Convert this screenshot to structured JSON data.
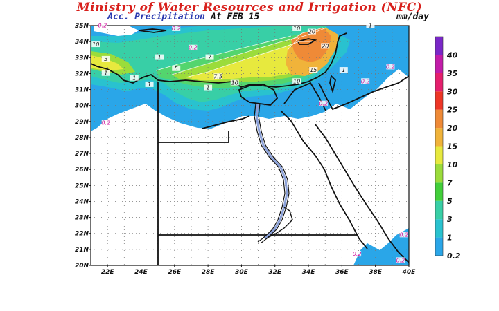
{
  "header": {
    "title": "Ministry of Water Resources and Irrigation (NFC)",
    "subtitle_label": "Acc. Precipitation",
    "subtitle_date": "At FEB 15",
    "units": "mm/day"
  },
  "map": {
    "lat_labels": [
      "35N",
      "34N",
      "33N",
      "32N",
      "31N",
      "30N",
      "29N",
      "28N",
      "27N",
      "26N",
      "25N",
      "24N",
      "23N",
      "22N",
      "21N",
      "20N"
    ],
    "lon_labels": [
      "22E",
      "24E",
      "26E",
      "28E",
      "30E",
      "32E",
      "34E",
      "36E",
      "38E",
      "40E"
    ],
    "contour_labels": [
      {
        "text": "0.2",
        "lat": 34.9,
        "lon": 21.7
      },
      {
        "text": "0.2",
        "lat": 34.7,
        "lon": 26.1
      },
      {
        "text": "10",
        "lat": 33.7,
        "lon": 21.3
      },
      {
        "text": "3",
        "lat": 32.8,
        "lon": 21.9
      },
      {
        "text": "1",
        "lat": 31.9,
        "lon": 21.9
      },
      {
        "text": "0.2",
        "lat": 33.5,
        "lon": 27.1
      },
      {
        "text": "1",
        "lat": 32.9,
        "lon": 25.1
      },
      {
        "text": "7",
        "lat": 32.9,
        "lon": 28.1
      },
      {
        "text": "5",
        "lat": 32.2,
        "lon": 26.1
      },
      {
        "text": "7.5",
        "lat": 31.7,
        "lon": 28.6
      },
      {
        "text": "10",
        "lat": 31.3,
        "lon": 29.6
      },
      {
        "text": "1",
        "lat": 31.6,
        "lon": 23.6
      },
      {
        "text": "1",
        "lat": 31.0,
        "lon": 28.0
      },
      {
        "text": "1",
        "lat": 31.2,
        "lon": 24.5
      },
      {
        "text": "0.2",
        "lat": 28.8,
        "lon": 21.9
      },
      {
        "text": "10",
        "lat": 34.7,
        "lon": 33.3
      },
      {
        "text": "20",
        "lat": 34.5,
        "lon": 34.2
      },
      {
        "text": "20",
        "lat": 33.6,
        "lon": 35.0
      },
      {
        "text": "15",
        "lat": 32.1,
        "lon": 34.3
      },
      {
        "text": "10",
        "lat": 31.4,
        "lon": 33.3
      },
      {
        "text": "1",
        "lat": 32.1,
        "lon": 36.1
      },
      {
        "text": "0.2",
        "lat": 31.4,
        "lon": 37.4
      },
      {
        "text": "0.2",
        "lat": 30.0,
        "lon": 34.9
      },
      {
        "text": "1",
        "lat": 34.9,
        "lon": 37.7
      },
      {
        "text": "0.2",
        "lat": 32.3,
        "lon": 38.9
      },
      {
        "text": "0.2",
        "lat": 21.8,
        "lon": 39.7
      },
      {
        "text": "0.2",
        "lat": 20.6,
        "lon": 36.9
      },
      {
        "text": "0.2",
        "lat": 20.2,
        "lon": 39.5
      }
    ],
    "colors": {
      "p02": "#2aa6e8",
      "p1": "#29c2cf",
      "p3": "#38cfa6",
      "p5": "#53d56e",
      "p7": "#9bdc3b",
      "p10": "#e7e93e",
      "p15": "#f0b33a",
      "p20": "#ef8a37",
      "p25": "#ee3626",
      "p30": "#e51f6d",
      "p35": "#c21ca9",
      "p40": "#7a27c8"
    }
  },
  "legend": {
    "levels": [
      {
        "label": "0.2",
        "color": "#2aa6e8"
      },
      {
        "label": "1",
        "color": "#29c2cf"
      },
      {
        "label": "3",
        "color": "#38cfa6"
      },
      {
        "label": "5",
        "color": "#42cf3a"
      },
      {
        "label": "7",
        "color": "#9bdc3b"
      },
      {
        "label": "10",
        "color": "#e7e93e"
      },
      {
        "label": "15",
        "color": "#f0b33a"
      },
      {
        "label": "20",
        "color": "#ef8a37"
      },
      {
        "label": "25",
        "color": "#ee3626"
      },
      {
        "label": "30",
        "color": "#e51f6d"
      },
      {
        "label": "35",
        "color": "#c21ca9"
      },
      {
        "label": "40",
        "color": "#7a27c8"
      }
    ]
  }
}
